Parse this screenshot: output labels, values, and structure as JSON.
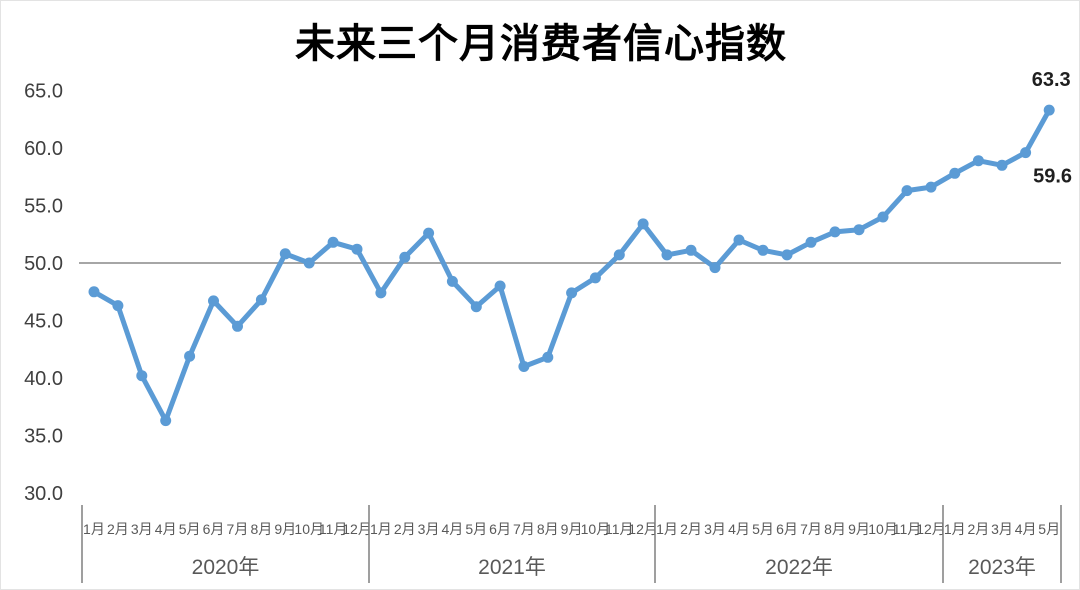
{
  "chart_data": {
    "type": "line",
    "title": "未来三个月消费者信心指数",
    "ylabel": "",
    "xlabel": "",
    "ylim": [
      30.0,
      65.0
    ],
    "yticks": [
      "65.0",
      "60.0",
      "55.0",
      "50.0",
      "45.0",
      "40.0",
      "35.0",
      "30.0"
    ],
    "reference_line": 50.0,
    "grid": "reference-line-only",
    "legend": "none",
    "line_color": "#5b9bd5",
    "reference_line_color": "#a6a6a6",
    "separator_color": "#7f7f7f",
    "groups": [
      {
        "year": "2020年",
        "months": [
          "1月",
          "2月",
          "3月",
          "4月",
          "5月",
          "6月",
          "7月",
          "8月",
          "9月",
          "10月",
          "11月",
          "12月"
        ],
        "values": [
          47.5,
          46.3,
          40.2,
          36.3,
          41.9,
          46.7,
          44.5,
          46.8,
          50.8,
          50.0,
          51.8,
          51.2
        ]
      },
      {
        "year": "2021年",
        "months": [
          "1月",
          "2月",
          "3月",
          "4月",
          "5月",
          "6月",
          "7月",
          "8月",
          "9月",
          "10月",
          "11月",
          "12月"
        ],
        "values": [
          47.4,
          50.5,
          52.6,
          48.4,
          46.2,
          48.0,
          41.0,
          41.8,
          47.4,
          48.7,
          50.7,
          53.4
        ]
      },
      {
        "year": "2022年",
        "months": [
          "1月",
          "2月",
          "3月",
          "4月",
          "5月",
          "6月",
          "7月",
          "8月",
          "9月",
          "10月",
          "11月",
          "12月"
        ],
        "values": [
          50.7,
          51.1,
          49.6,
          52.0,
          51.1,
          50.7,
          51.8,
          52.7,
          52.9,
          54.0,
          56.3,
          56.6
        ]
      },
      {
        "year": "2023年",
        "months": [
          "1月",
          "2月",
          "3月",
          "4月",
          "5月"
        ],
        "values": [
          57.8,
          58.9,
          58.5,
          59.6,
          63.3
        ]
      }
    ],
    "annotations": [
      {
        "text": "63.3",
        "year_index": 3,
        "month_index": 4,
        "placement": "above"
      },
      {
        "text": "59.6",
        "year_index": 3,
        "month_index": 3,
        "placement": "below-right"
      }
    ]
  }
}
